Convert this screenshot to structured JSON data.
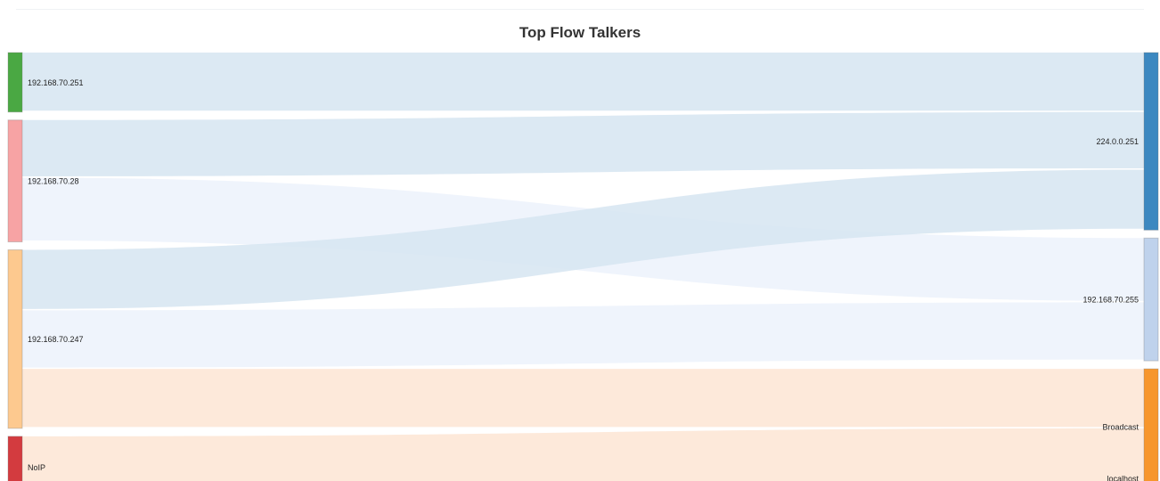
{
  "chart_data": {
    "type": "sankey",
    "title": "Top Flow Talkers",
    "sources": [
      {
        "name": "192.168.70.251",
        "color": "#4aa843"
      },
      {
        "name": "192.168.70.28",
        "color": "#f7a3a4"
      },
      {
        "name": "192.168.70.247",
        "color": "#fdc98f"
      },
      {
        "name": "NoIP",
        "color": "#d33b3f"
      }
    ],
    "targets": [
      {
        "name": "224.0.0.251",
        "color": "#3c88c0"
      },
      {
        "name": "192.168.70.255",
        "color": "#bfd2ec"
      },
      {
        "name": "Broadcast",
        "color": "#f7962c"
      },
      {
        "name": "localhost",
        "color": "#fa9a35"
      }
    ],
    "links": [
      {
        "source": "192.168.70.251",
        "target": "224.0.0.251",
        "value": 6.3,
        "color": "#d6e5f1"
      },
      {
        "source": "192.168.70.28",
        "target": "224.0.0.251",
        "value": 6.1,
        "color": "#d6e5f1"
      },
      {
        "source": "192.168.70.28",
        "target": "192.168.70.255",
        "value": 6.8,
        "color": "#ecf2fb"
      },
      {
        "source": "192.168.70.247",
        "target": "224.0.0.251",
        "value": 6.4,
        "color": "#d6e5f1"
      },
      {
        "source": "192.168.70.247",
        "target": "192.168.70.255",
        "value": 6.2,
        "color": "#ecf2fb"
      },
      {
        "source": "192.168.70.247",
        "target": "Broadcast",
        "value": 6.3,
        "color": "#fde5d4"
      },
      {
        "source": "NoIP",
        "target": "Broadcast",
        "value": 6.0,
        "color": "#fde5d4"
      },
      {
        "source": "NoIP",
        "target": "localhost",
        "value": 0.6,
        "color": "#fde5d4"
      }
    ]
  }
}
